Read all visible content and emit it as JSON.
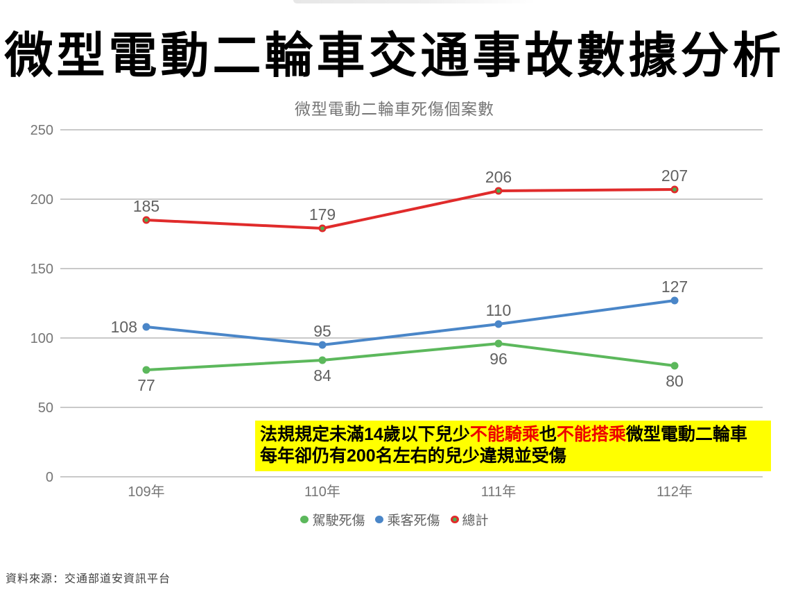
{
  "header": {
    "title": "微型電動二輪車交通事故數據分析"
  },
  "chart_data": {
    "type": "line",
    "title": "微型電動二輪車死傷個案數",
    "categories": [
      "109年",
      "110年",
      "111年",
      "112年"
    ],
    "series": [
      {
        "name": "駕駛死傷",
        "color": "#5cb85c",
        "values": [
          77,
          84,
          96,
          80
        ],
        "label_position": "below"
      },
      {
        "name": "乘客死傷",
        "color": "#4a86c8",
        "values": [
          108,
          95,
          110,
          127
        ],
        "label_position": "above",
        "first_label_left": true
      },
      {
        "name": "總計",
        "color": "#e02b2b",
        "marker_center": "#4caf50",
        "values": [
          185,
          179,
          206,
          207
        ],
        "label_position": "above"
      }
    ],
    "y_ticks": [
      0,
      50,
      100,
      150,
      200,
      250
    ],
    "ylim": [
      0,
      250
    ],
    "grid": true,
    "legend_position": "bottom",
    "grid_color": "#c9c9c9",
    "axis_text_color": "#757575",
    "data_label_color": "#616161"
  },
  "annotation": {
    "background": "#ffff00",
    "line1": [
      {
        "text": "法規規定未滿14歲以下兒少"
      },
      {
        "text": "不能騎乘"
      },
      {
        "text": "也"
      },
      {
        "text": "不能搭乘"
      },
      {
        "text": "微型電動二輪車"
      }
    ],
    "line2": "每年卻仍有200名左右的兒少違規並受傷"
  },
  "footer": {
    "source": "資料來源：交通部道安資訊平台"
  }
}
